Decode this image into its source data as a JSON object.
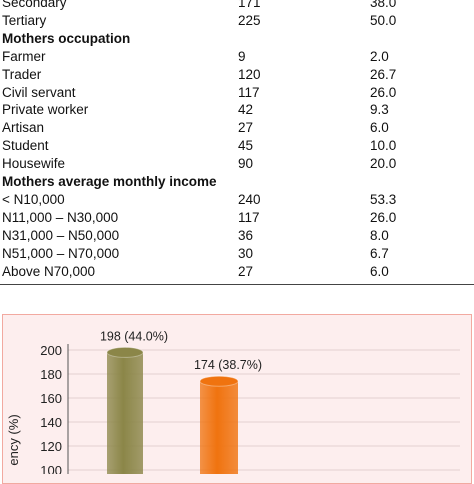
{
  "table": {
    "rows": [
      {
        "type": "row",
        "label": "Secondary",
        "freq": "171",
        "pct": "38.0"
      },
      {
        "type": "row",
        "label": "Tertiary",
        "freq": "225",
        "pct": "50.0"
      },
      {
        "type": "header",
        "label": "Mothers occupation"
      },
      {
        "type": "row",
        "label": "Farmer",
        "freq": "9",
        "pct": "2.0"
      },
      {
        "type": "row",
        "label": "Trader",
        "freq": "120",
        "pct": "26.7"
      },
      {
        "type": "row",
        "label": "Civil servant",
        "freq": "117",
        "pct": "26.0"
      },
      {
        "type": "row",
        "label": "Private worker",
        "freq": "42",
        "pct": "9.3"
      },
      {
        "type": "row",
        "label": "Artisan",
        "freq": "27",
        "pct": "6.0"
      },
      {
        "type": "row",
        "label": "Student",
        "freq": "45",
        "pct": "10.0"
      },
      {
        "type": "row",
        "label": "Housewife",
        "freq": "90",
        "pct": "20.0"
      },
      {
        "type": "header",
        "label": "Mothers average monthly income"
      },
      {
        "type": "row",
        "label": "< N10,000",
        "freq": "240",
        "pct": "53.3"
      },
      {
        "type": "row",
        "label": "N11,000 – N30,000",
        "freq": "117",
        "pct": "26.0"
      },
      {
        "type": "row",
        "label": "N31,000 – N50,000",
        "freq": "36",
        "pct": "8.0"
      },
      {
        "type": "row",
        "label": "N51,000 – N70,000",
        "freq": "30",
        "pct": "6.7"
      },
      {
        "type": "row",
        "label": "Above N70,000",
        "freq": "27",
        "pct": "6.0"
      }
    ]
  },
  "chart_data": {
    "type": "bar",
    "ylabel": "ency (%)",
    "ylim": [
      100,
      200
    ],
    "yticks": [
      "100",
      "120",
      "140",
      "160",
      "180",
      "200"
    ],
    "series": [
      {
        "value": 198,
        "label": "198 (44.0%)",
        "color": "#8b8648"
      },
      {
        "value": 174,
        "label": "174 (38.7%)",
        "color": "#f0730f"
      }
    ]
  }
}
